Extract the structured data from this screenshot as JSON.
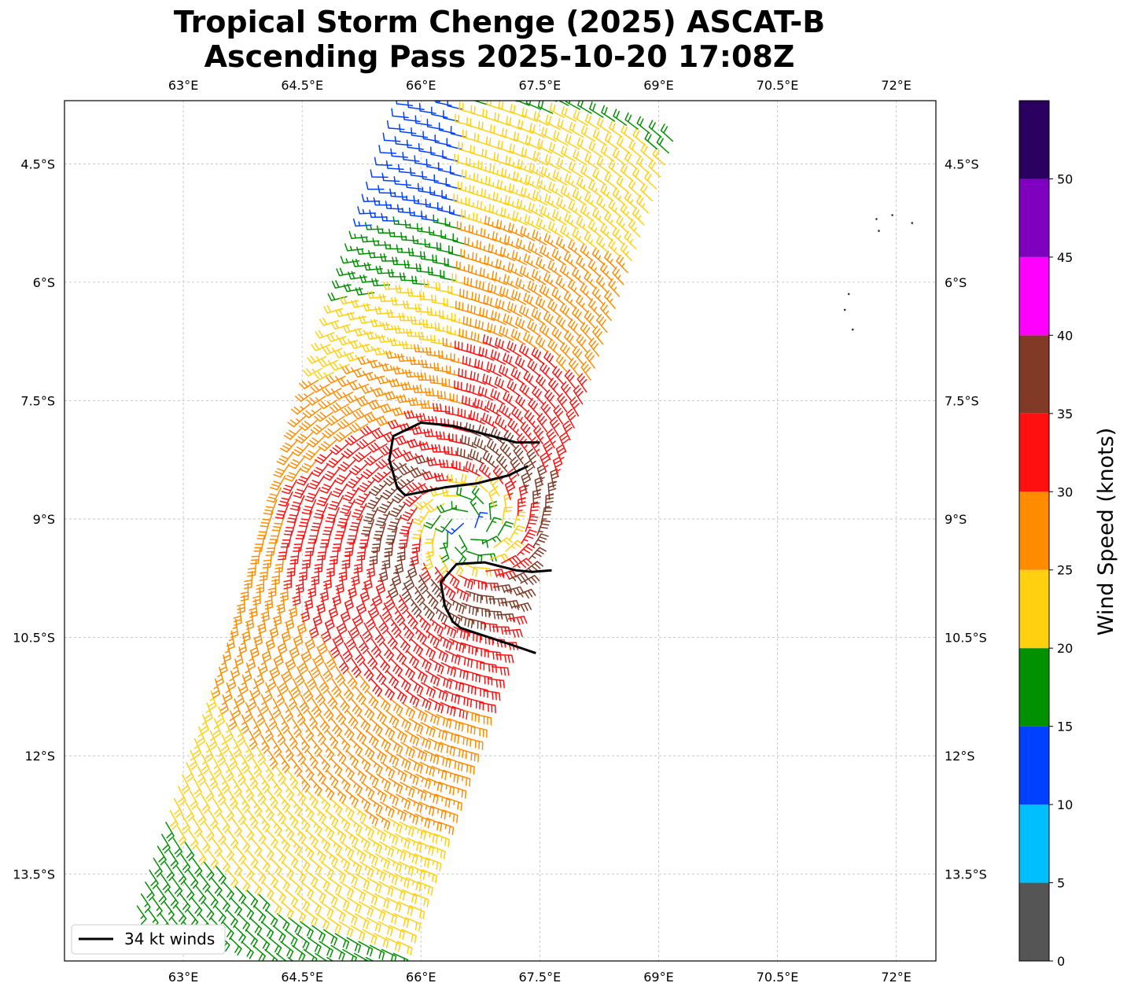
{
  "chart_data": {
    "type": "wind-barb map",
    "title_line1": "Tropical Storm Chenge (2025) ASCAT-B",
    "title_line2": "Ascending Pass 2025-10-20 17:08Z",
    "lon_range": [
      61.5,
      72.5
    ],
    "lat_range": [
      -14.6,
      -3.7
    ],
    "lon_ticks": [
      63,
      64.5,
      66,
      67.5,
      69,
      70.5,
      72
    ],
    "lon_tick_labels": [
      "63°E",
      "64.5°E",
      "66°E",
      "67.5°E",
      "69°E",
      "70.5°E",
      "72°E"
    ],
    "lat_ticks": [
      -4.5,
      -6,
      -7.5,
      -9,
      -10.5,
      -12,
      -13.5
    ],
    "lat_tick_labels": [
      "4.5°S",
      "6°S",
      "7.5°S",
      "9°S",
      "10.5°S",
      "12°S",
      "13.5°S"
    ],
    "colorbar": {
      "label": "Wind Speed (knots)",
      "bounds": [
        0,
        5,
        10,
        15,
        20,
        25,
        30,
        35,
        40,
        45,
        50,
        55
      ],
      "tick_labels": [
        "0",
        "5",
        "10",
        "15",
        "20",
        "25",
        "30",
        "35",
        "40",
        "45",
        "50"
      ],
      "colors": [
        "#555555",
        "#00bfff",
        "#0040ff",
        "#009000",
        "#ffd010",
        "#ff8c00",
        "#ff1010",
        "#803a26",
        "#ff00ff",
        "#8000c0",
        "#2a0060"
      ]
    },
    "storm_center": {
      "lon": 66.6,
      "lat": -9.1
    },
    "legend_label": "34 kt winds",
    "contour_34kt": [
      [
        [
          67.5,
          -8.03
        ],
        [
          67.2,
          -8.03
        ],
        [
          66.9,
          -7.95
        ],
        [
          66.4,
          -7.82
        ],
        [
          66.0,
          -7.78
        ],
        [
          65.65,
          -7.95
        ],
        [
          65.6,
          -8.25
        ],
        [
          65.7,
          -8.6
        ],
        [
          65.8,
          -8.7
        ],
        [
          66.3,
          -8.6
        ],
        [
          66.7,
          -8.55
        ],
        [
          67.1,
          -8.45
        ],
        [
          67.35,
          -8.33
        ]
      ],
      [
        [
          67.65,
          -9.65
        ],
        [
          67.4,
          -9.67
        ],
        [
          67.2,
          -9.65
        ],
        [
          66.8,
          -9.55
        ],
        [
          66.45,
          -9.57
        ],
        [
          66.25,
          -9.8
        ],
        [
          66.3,
          -10.1
        ],
        [
          66.4,
          -10.3
        ],
        [
          66.5,
          -10.38
        ],
        [
          66.8,
          -10.48
        ],
        [
          67.1,
          -10.58
        ],
        [
          67.45,
          -10.7
        ]
      ]
    ],
    "islands": [
      [
        71.75,
        -5.2
      ],
      [
        71.78,
        -5.35
      ],
      [
        71.95,
        -5.15
      ],
      [
        72.2,
        -5.25
      ],
      [
        71.4,
        -6.15
      ],
      [
        71.35,
        -6.35
      ],
      [
        71.45,
        -6.6
      ]
    ]
  }
}
